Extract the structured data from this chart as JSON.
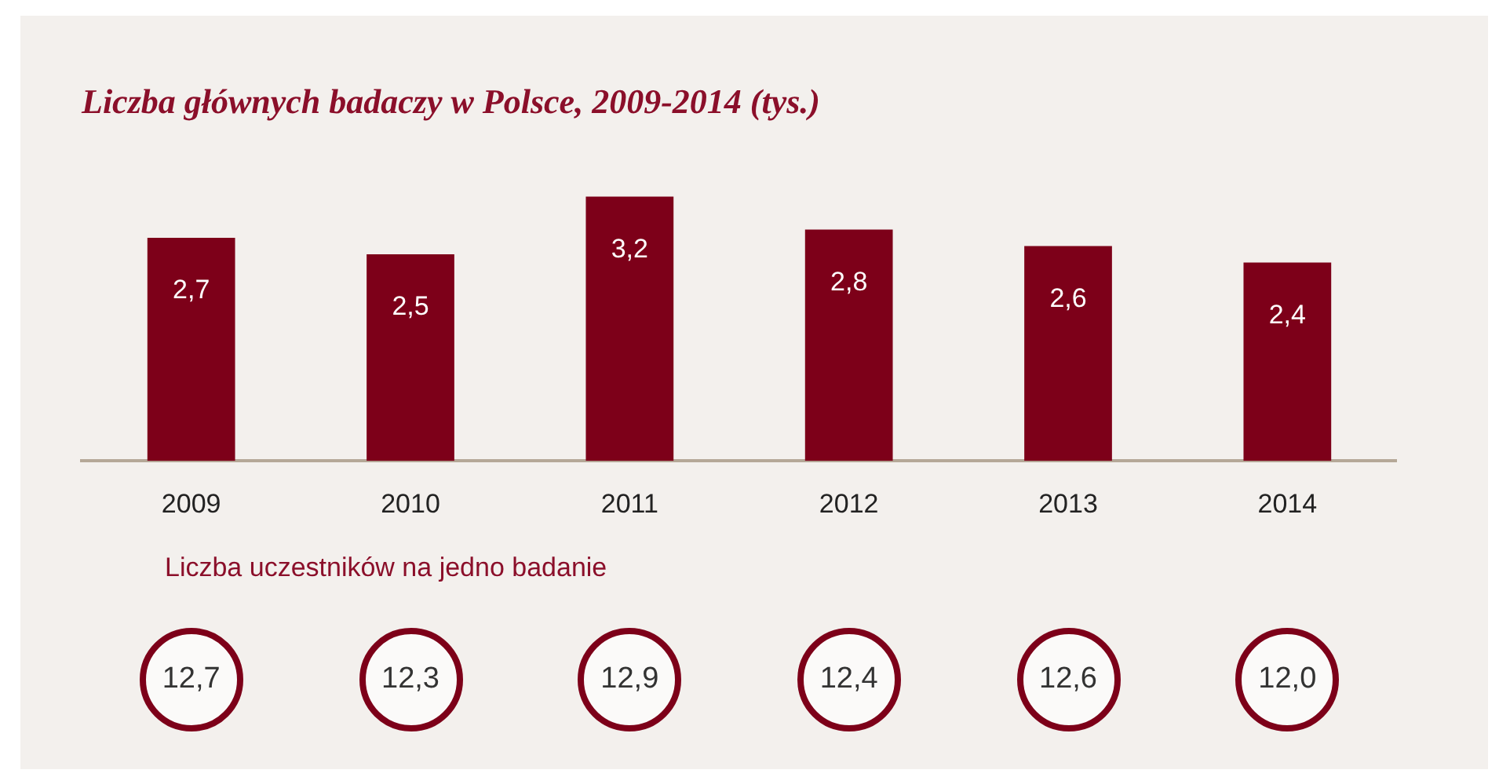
{
  "chart_data": [
    {
      "type": "bar",
      "title": "Liczba głównych badaczy w Polsce, 2009-2014 (tys.)",
      "categories": [
        "2009",
        "2010",
        "2011",
        "2012",
        "2013",
        "2014"
      ],
      "values": [
        2.7,
        2.5,
        3.2,
        2.8,
        2.6,
        2.4
      ],
      "value_labels": [
        "2,7",
        "2,5",
        "3,2",
        "2,8",
        "2,6",
        "2,4"
      ],
      "color": "#7d0019",
      "grid": false,
      "legend": false
    },
    {
      "type": "other",
      "title": "Liczba uczestników na jedno badanie",
      "values": [
        12.7,
        12.3,
        12.9,
        12.4,
        12.6,
        12.0
      ],
      "value_labels": [
        "12,7",
        "12,3",
        "12,9",
        "12,4",
        "12,6",
        "12,0"
      ],
      "color": "#7d0019"
    }
  ]
}
